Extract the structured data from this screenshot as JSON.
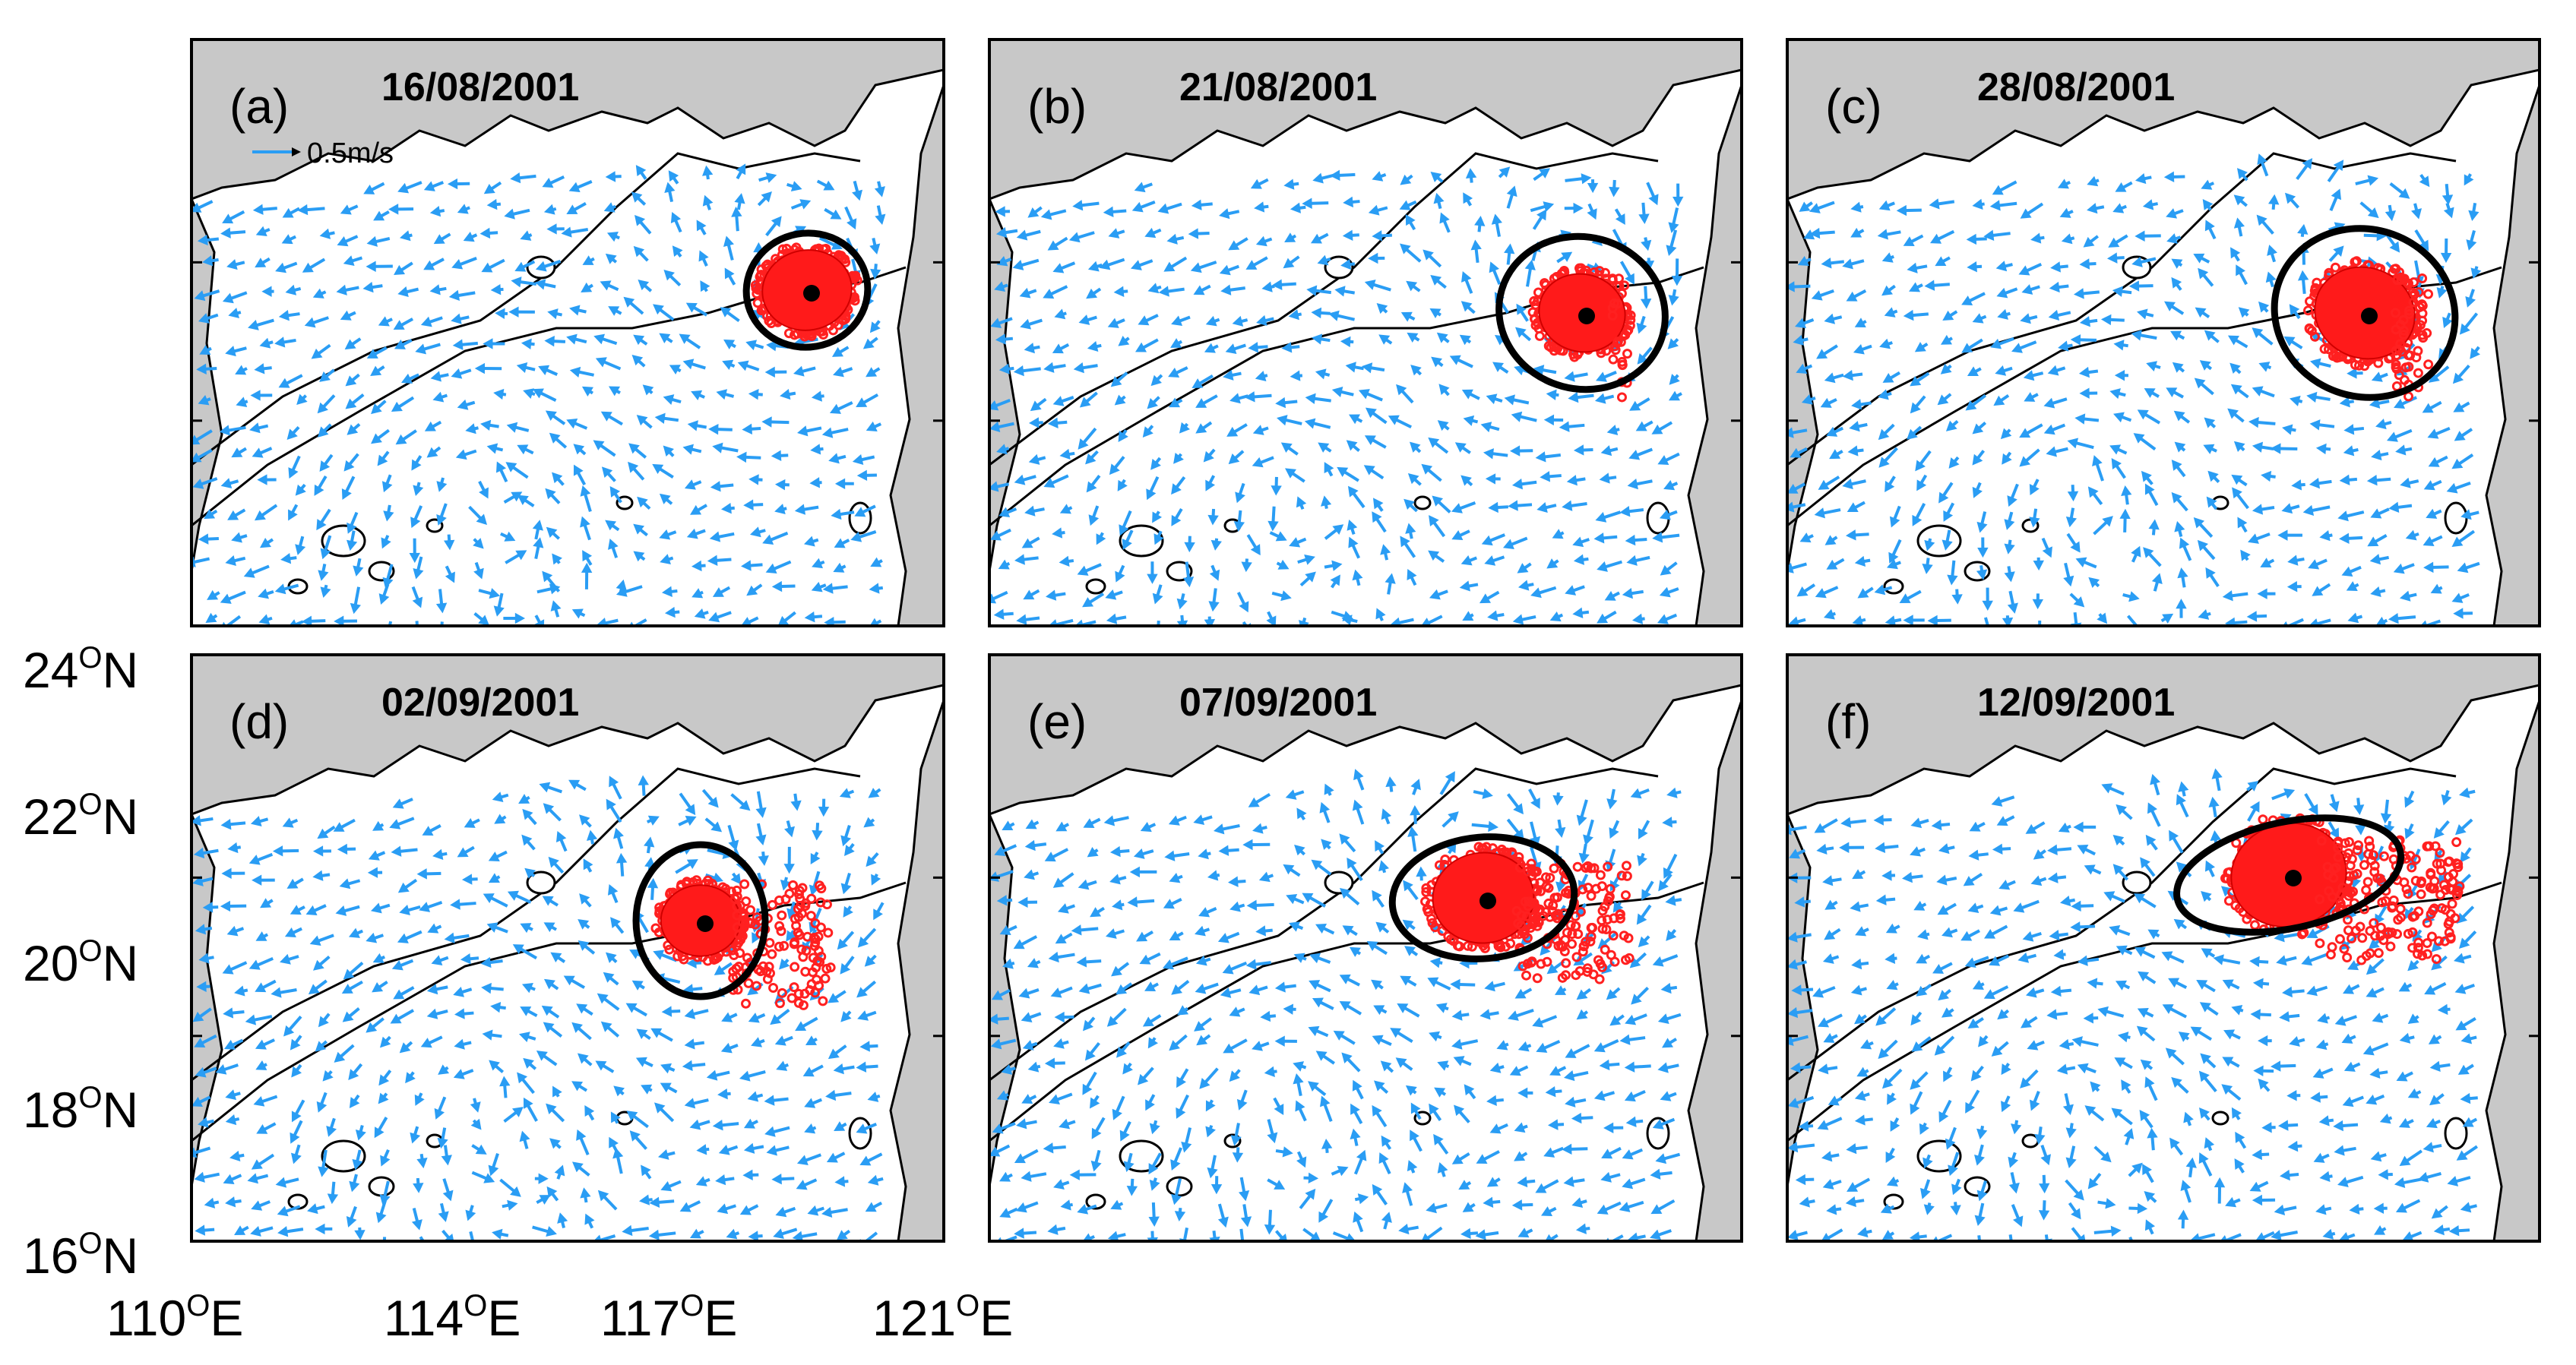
{
  "figure": {
    "panels": [
      {
        "letter": "(a)",
        "date": "16/08/2001",
        "has_scale": true
      },
      {
        "letter": "(b)",
        "date": "21/08/2001",
        "has_scale": false
      },
      {
        "letter": "(c)",
        "date": "28/08/2001",
        "has_scale": false
      },
      {
        "letter": "(d)",
        "date": "02/09/2001",
        "has_scale": false
      },
      {
        "letter": "(e)",
        "date": "07/09/2001",
        "has_scale": false
      },
      {
        "letter": "(f)",
        "date": "12/09/2001",
        "has_scale": false
      }
    ],
    "scale_vector_label": "0.5m/s",
    "y_ticks": [
      "24",
      "22",
      "20",
      "18",
      "16"
    ],
    "y_suffix": "N",
    "x_ticks": [
      "110",
      "114",
      "117",
      "121"
    ],
    "x_suffix": "E",
    "degree_symbol": "O",
    "colors": {
      "land": "#c8c8c8",
      "vectors": "#2a9df4",
      "eddy_core": "#ff1a1a",
      "eddy_boundary": "#000000"
    }
  }
}
